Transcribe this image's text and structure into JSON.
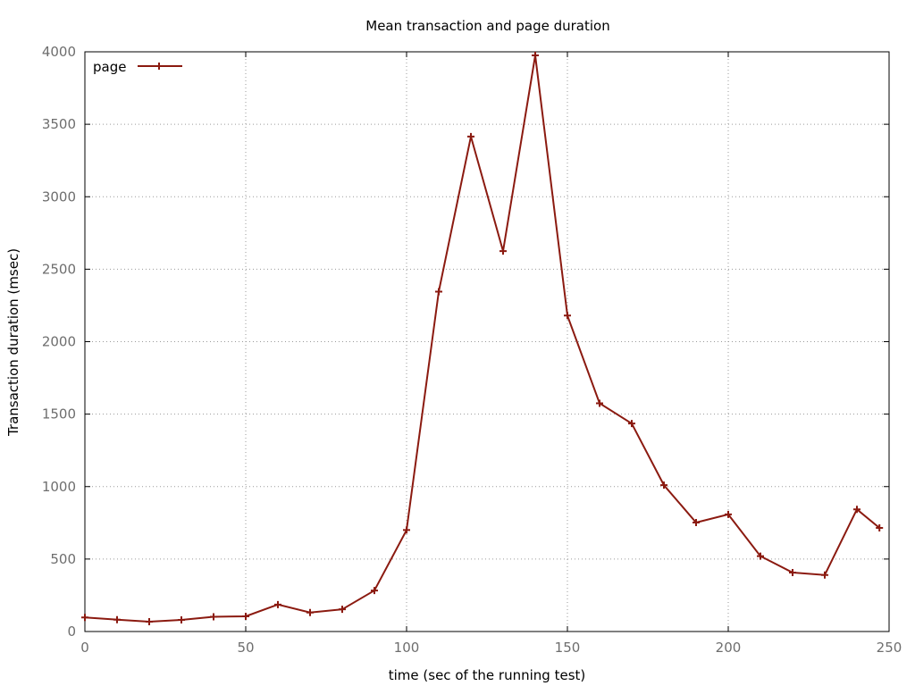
{
  "chart_data": {
    "type": "line",
    "title": "Mean transaction and page duration",
    "xlabel": "time (sec of the running test)",
    "ylabel": "Transaction duration (msec)",
    "xlim": [
      0,
      250
    ],
    "ylim": [
      0,
      4000
    ],
    "x_ticks": [
      0,
      50,
      100,
      150,
      200,
      250
    ],
    "y_ticks": [
      0,
      500,
      1000,
      1500,
      2000,
      2500,
      3000,
      3500,
      4000
    ],
    "x_tick_labels": [
      "0",
      "50",
      "100",
      "150",
      "200",
      "250"
    ],
    "y_tick_labels": [
      "0",
      "500",
      "1000",
      "1500",
      "2000",
      "2500",
      "3000",
      "3500",
      "4000"
    ],
    "grid": true,
    "legend_position": "top-left",
    "colors": {
      "series": "#8b1a10",
      "axis": "#000000",
      "tick_text": "#6e6e6e",
      "grid": "#9a9a9a"
    },
    "series": [
      {
        "name": "page",
        "marker": "plus",
        "x": [
          0,
          10,
          20,
          30,
          40,
          50,
          60,
          70,
          80,
          90,
          100,
          110,
          120,
          130,
          140,
          150,
          160,
          170,
          180,
          190,
          200,
          210,
          220,
          230,
          240,
          247
        ],
        "y": [
          97,
          82,
          68,
          80,
          102,
          105,
          186,
          131,
          153,
          283,
          700,
          2345,
          3415,
          2625,
          3975,
          2180,
          1575,
          1435,
          1010,
          752,
          808,
          520,
          407,
          390,
          843,
          715
        ]
      }
    ]
  }
}
